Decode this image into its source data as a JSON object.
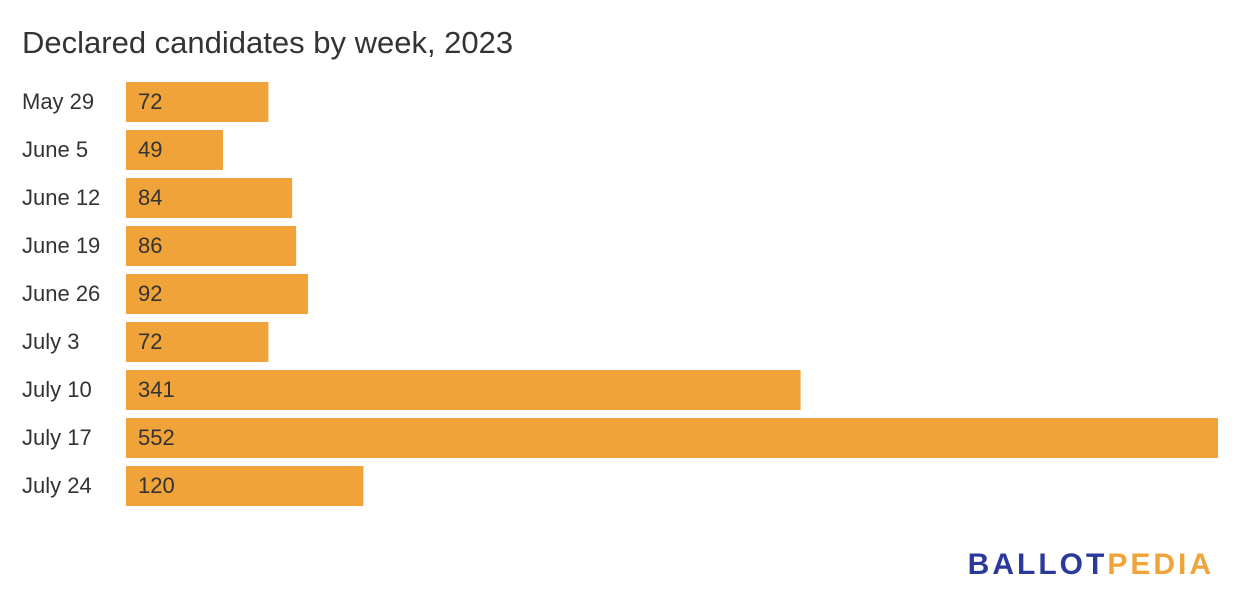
{
  "chart_data": {
    "type": "bar",
    "title": "Declared candidates by week, 2023",
    "categories": [
      "May 29",
      "June 5",
      "June 12",
      "June 19",
      "June 26",
      "July 3",
      "July 10",
      "July 17",
      "July 24"
    ],
    "values": [
      72,
      49,
      84,
      86,
      92,
      72,
      341,
      552,
      120
    ],
    "color": "#f0a338"
  },
  "logo": {
    "part1": "BALLOT",
    "part1_color": "#2b3a9a",
    "part2": "PEDIA",
    "part2_color": "#f0a338"
  }
}
